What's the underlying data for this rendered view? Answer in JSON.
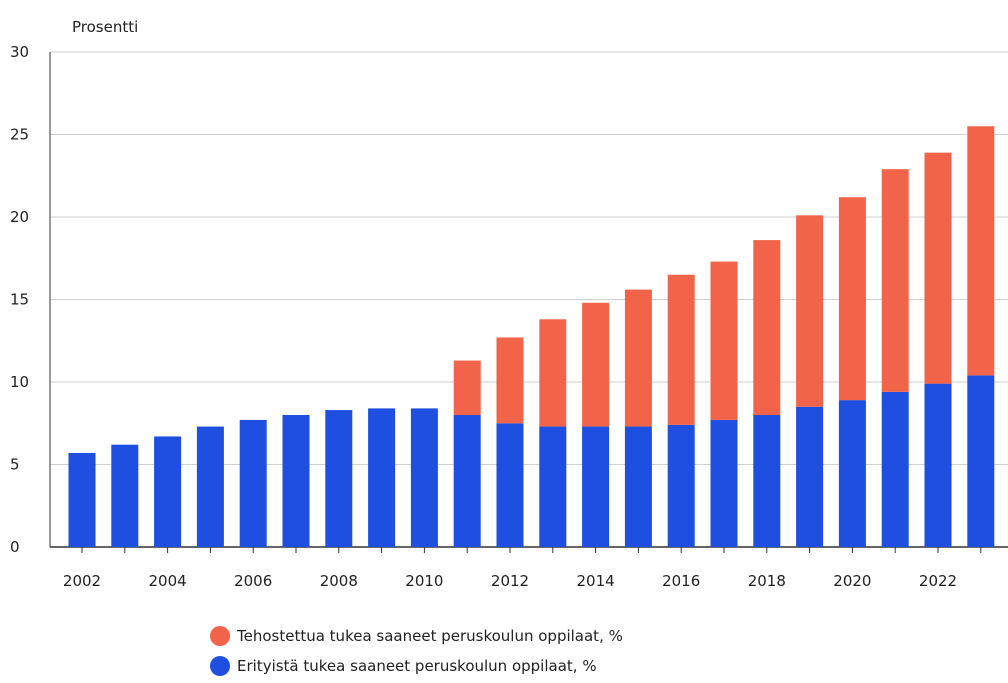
{
  "chart_data": {
    "type": "bar",
    "stacked": true,
    "title": "",
    "xlabel": "",
    "ylabel": "Prosentti",
    "ylim": [
      0,
      30
    ],
    "yticks": [
      0,
      5,
      10,
      15,
      20,
      25,
      30
    ],
    "grid": true,
    "legend_position": "bottom",
    "categories": [
      "2002",
      "2003",
      "2004",
      "2005",
      "2006",
      "2007",
      "2008",
      "2009",
      "2010",
      "2011",
      "2012",
      "2013",
      "2014",
      "2015",
      "2016",
      "2017",
      "2018",
      "2019",
      "2020",
      "2021",
      "2022",
      "2023"
    ],
    "x_tick_labels": [
      "2002",
      "2004",
      "2006",
      "2008",
      "2010",
      "2012",
      "2014",
      "2016",
      "2018",
      "2020",
      "2022"
    ],
    "series": [
      {
        "name": "Erityistä tukea saaneet peruskoulun oppilaat, %",
        "color": "#1f4fe0",
        "values": [
          5.7,
          6.2,
          6.7,
          7.3,
          7.7,
          8.0,
          8.3,
          8.4,
          8.4,
          8.0,
          7.5,
          7.3,
          7.3,
          7.3,
          7.4,
          7.7,
          8.0,
          8.5,
          8.9,
          9.4,
          9.9,
          10.4
        ]
      },
      {
        "name": "Tehostettua tukea saaneet peruskoulun oppilaat, %",
        "color": "#f26449",
        "values": [
          0,
          0,
          0,
          0,
          0,
          0,
          0,
          0,
          0,
          3.3,
          5.2,
          6.5,
          7.5,
          8.3,
          9.1,
          9.6,
          10.6,
          11.6,
          12.3,
          13.5,
          14.0,
          15.1
        ]
      }
    ],
    "legend": [
      {
        "label": "Tehostettua tukea saaneet peruskoulun oppilaat, %",
        "color": "#f26449"
      },
      {
        "label": "Erityistä tukea saaneet peruskoulun oppilaat, %",
        "color": "#1f4fe0"
      }
    ]
  }
}
